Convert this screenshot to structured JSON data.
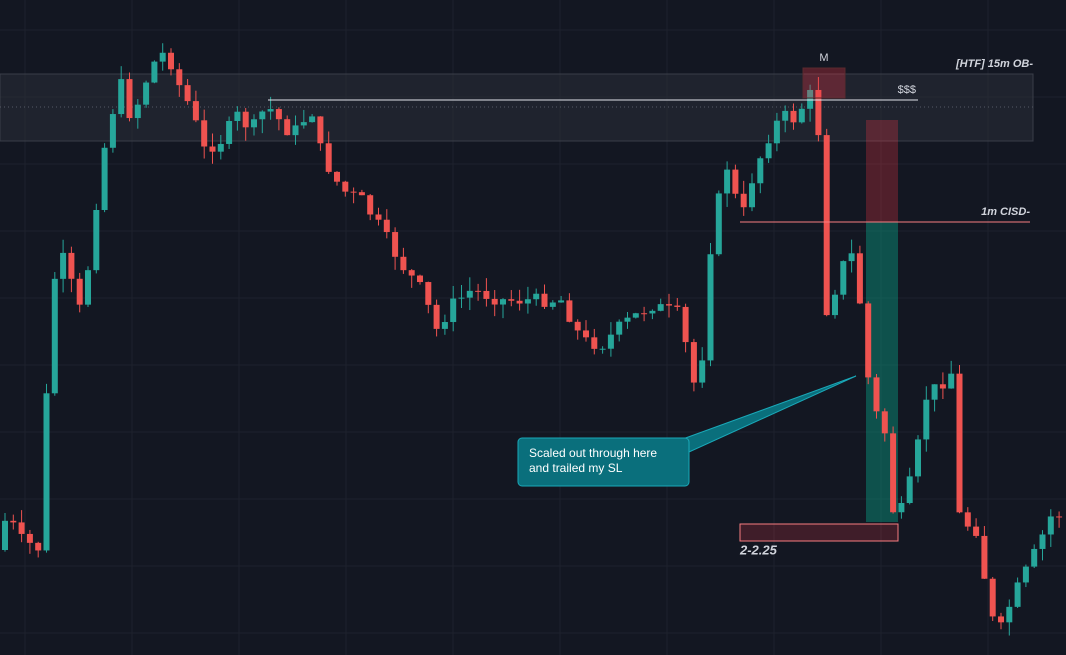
{
  "annotations": {
    "zone_label": "[HTF] 15m OB-",
    "liquidity_label": "$$$",
    "pattern_label": "M",
    "cisd_label": "1m CISD-",
    "target_label": "2-2.25",
    "callout": [
      "Scaled out through here",
      "and trailed my SL"
    ]
  }
}
